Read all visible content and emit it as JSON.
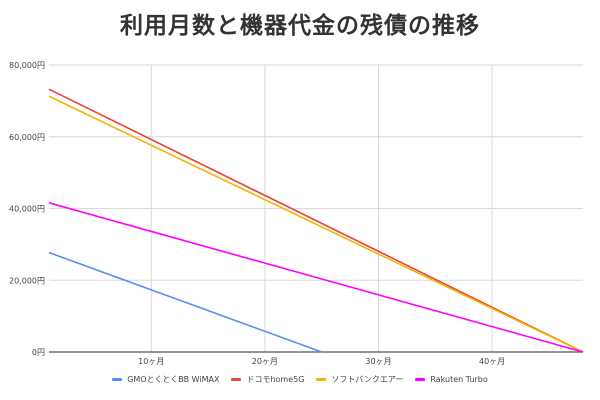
{
  "chart_data": {
    "type": "line",
    "title": "利用月数と機器代金の残債の推移",
    "xlabel": "",
    "ylabel": "",
    "x_range": [
      1,
      48
    ],
    "ylim": [
      0,
      80000
    ],
    "y_ticks": [
      "0円",
      "20,000円",
      "40,000円",
      "60,000円",
      "80,000円"
    ],
    "y_tick_values": [
      0,
      20000,
      40000,
      60000,
      80000
    ],
    "x_ticks": [
      "10ヶ月",
      "20ヶ月",
      "30ヶ月",
      "40ヶ月"
    ],
    "x_tick_values": [
      10,
      20,
      30,
      40
    ],
    "grid": true,
    "legend_position": "bottom",
    "series": [
      {
        "name": "GMOとくとくBB WiMAX",
        "color": "#5b8def",
        "x": [
          1,
          25
        ],
        "values": [
          27720,
          0
        ]
      },
      {
        "name": "ドコモhome5G",
        "color": "#e8453c",
        "x": [
          1,
          48
        ],
        "values": [
          73260,
          0
        ]
      },
      {
        "name": "ソフトバンクエアー",
        "color": "#f4b400",
        "x": [
          1,
          48
        ],
        "values": [
          71280,
          0
        ]
      },
      {
        "name": "Rakuten Turbo",
        "color": "#ff00ff",
        "x": [
          1,
          48
        ],
        "values": [
          41580,
          0
        ]
      }
    ]
  }
}
